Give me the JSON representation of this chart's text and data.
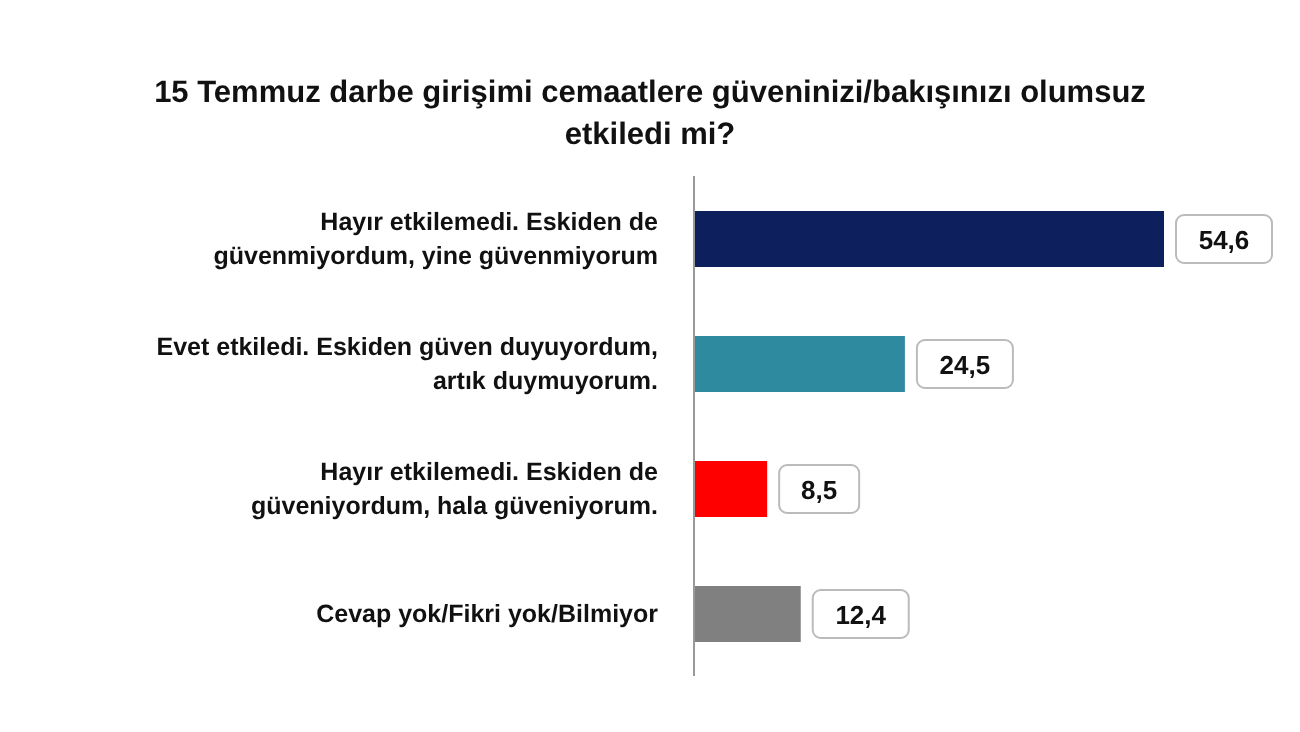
{
  "chart_data": {
    "type": "bar",
    "orientation": "horizontal",
    "title": "15 Temmuz darbe girişimi cemaatlere güveninizi/bakışınızı olumsuz etkiledi mi?",
    "categories": [
      "Hayır etkilemedi. Eskiden de güvenmiyordum, yine güvenmiyorum",
      "Evet etkiledi. Eskiden güven duyuyordum, artık duymuyorum.",
      "Hayır etkilemedi. Eskiden de güveniyordum, hala güveniyorum.",
      "Cevap yok/Fikri yok/Bilmiyor"
    ],
    "values": [
      54.6,
      24.5,
      8.5,
      12.4
    ],
    "value_labels": [
      "54,6",
      "24,5",
      "8,5",
      "12,4"
    ],
    "colors": [
      "#0d1f5c",
      "#2e8a9e",
      "#ff0000",
      "#808080"
    ]
  }
}
